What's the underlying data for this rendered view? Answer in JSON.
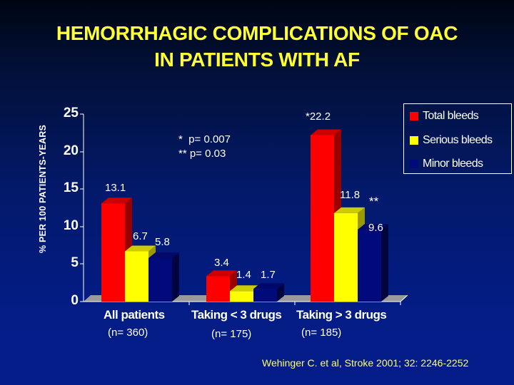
{
  "title": {
    "line1": "HEMORRHAGIC COMPLICATIONS OF OAC",
    "line2": "IN PATIENTS WITH AF"
  },
  "ylabel": "% PER 100 PATIENTS-YEARS",
  "yticks": [
    "25",
    "20",
    "15",
    "10",
    "5",
    "0"
  ],
  "stats": {
    "line1": "*  p= 0.007",
    "line2": "** p= 0.03"
  },
  "legend": [
    {
      "label": "Total bleeds",
      "color": "#ff0000"
    },
    {
      "label": "Serious bleeds",
      "color": "#ffff00"
    },
    {
      "label": "Minor bleeds",
      "color": "#000a7a"
    }
  ],
  "groups": [
    {
      "label": "All patients",
      "n": "(n= 360)"
    },
    {
      "label": "Taking < 3 drugs",
      "n": "(n= 175)"
    },
    {
      "label": "Taking > 3 drugs",
      "n": "(n= 185)"
    }
  ],
  "value_labels": {
    "g0": [
      "13.1",
      "6.7",
      "5.8"
    ],
    "g1": [
      "3.4",
      "1.4",
      "1.7"
    ],
    "g2": [
      "*22.2",
      "11.8",
      "9.6"
    ],
    "annotation_double_star": "**"
  },
  "reference": "Wehinger C. et al, Stroke 2001; 32: 2246-2252",
  "chart_data": {
    "type": "bar",
    "title": "HEMORRHAGIC COMPLICATIONS OF OAC IN PATIENTS WITH AF",
    "xlabel": "",
    "ylabel": "% PER 100 PATIENTS-YEARS",
    "ylim": [
      0,
      25
    ],
    "yticks": [
      0,
      5,
      10,
      15,
      20,
      25
    ],
    "categories": [
      "All patients (n= 360)",
      "Taking < 3 drugs (n= 175)",
      "Taking > 3 drugs (n= 185)"
    ],
    "series": [
      {
        "name": "Total bleeds",
        "color": "#ff0000",
        "values": [
          13.1,
          3.4,
          22.2
        ]
      },
      {
        "name": "Serious bleeds",
        "color": "#ffff00",
        "values": [
          6.7,
          1.4,
          11.8
        ]
      },
      {
        "name": "Minor bleeds",
        "color": "#000a7a",
        "values": [
          5.8,
          1.7,
          9.6
        ]
      }
    ],
    "annotations": [
      "* p= 0.007 (Total bleeds, Taking > 3 drugs)",
      "** p= 0.03 (Serious bleeds, Taking > 3 drugs)"
    ],
    "legend_position": "top-right",
    "grid": false,
    "style": "3d-bars"
  }
}
